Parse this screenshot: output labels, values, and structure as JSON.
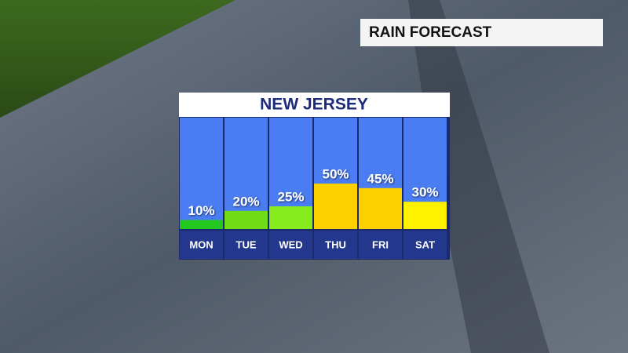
{
  "header": {
    "title": "RAIN FORECAST"
  },
  "chart_data": {
    "type": "bar",
    "title": "NEW JERSEY",
    "categories": [
      "MON",
      "TUE",
      "WED",
      "THU",
      "FRI",
      "SAT"
    ],
    "values": [
      10,
      20,
      25,
      50,
      45,
      30
    ],
    "value_labels": [
      "10%",
      "20%",
      "25%",
      "50%",
      "45%",
      "30%"
    ],
    "colors": [
      "#22c81e",
      "#6fdc16",
      "#86ec1c",
      "#ffd000",
      "#ffd000",
      "#fff200"
    ]
  }
}
